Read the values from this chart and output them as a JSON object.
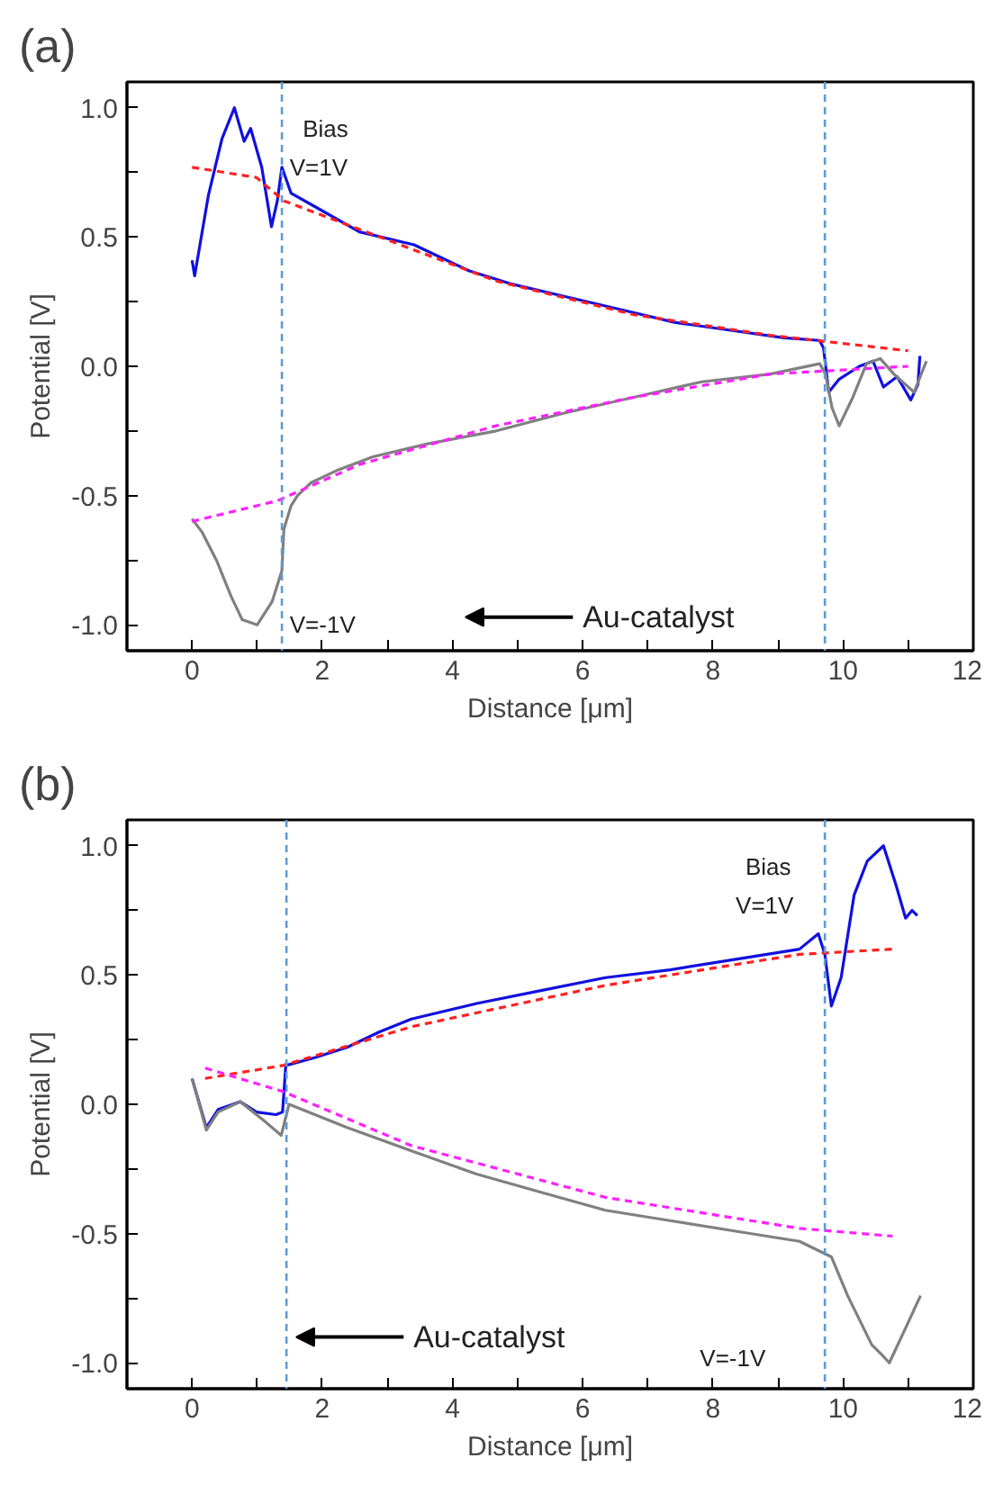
{
  "chart_data": [
    {
      "type": "line",
      "title": "(a)",
      "xlabel": "Distance [μm]",
      "ylabel": "Potential [V]",
      "xlim": [
        -1,
        12
      ],
      "ylim": [
        -1.1,
        1.1
      ],
      "xticks": [
        0,
        {
          "value": 1,
          "label": null
        },
        2,
        {
          "value": 3,
          "label": null
        },
        4,
        {
          "value": 5,
          "label": null
        },
        6,
        {
          "value": 7,
          "label": null
        },
        8,
        {
          "value": 9,
          "label": null
        },
        10,
        {
          "value": 11,
          "label": null
        },
        12
      ],
      "yticks": [
        {
          "value": -1.0,
          "label": "-1.0"
        },
        {
          "value": -0.75,
          "label": null
        },
        {
          "value": -0.5,
          "label": "-0.5"
        },
        {
          "value": -0.25,
          "label": null
        },
        {
          "value": 0.0,
          "label": "0.0"
        },
        {
          "value": 0.25,
          "label": null
        },
        {
          "value": 0.5,
          "label": "0.5"
        },
        {
          "value": 0.75,
          "label": null
        },
        {
          "value": 1.0,
          "label": "1.0"
        }
      ],
      "grid": false,
      "series": [
        {
          "color": "#1010e0",
          "line_style": "solid",
          "x": [
            0,
            0.04,
            0.25,
            0.46,
            0.65,
            0.8,
            0.9,
            1.07,
            1.22,
            1.31,
            1.38,
            1.52,
            1.94,
            2.57,
            3.41,
            4.25,
            4.88,
            5.73,
            6.57,
            7.41,
            8.25,
            9.09,
            9.64,
            9.7,
            9.78,
            9.94,
            10.25,
            10.46,
            10.62,
            10.83,
            11.04,
            11.15,
            11.18
          ],
          "values": [
            0.41,
            0.35,
            0.66,
            0.88,
            1.0,
            0.87,
            0.92,
            0.77,
            0.54,
            0.64,
            0.77,
            0.67,
            0.61,
            0.52,
            0.47,
            0.37,
            0.32,
            0.27,
            0.22,
            0.17,
            0.14,
            0.11,
            0.1,
            0.07,
            -0.1,
            -0.05,
            0.0,
            0.02,
            -0.08,
            -0.04,
            -0.13,
            -0.07,
            0.04
          ]
        },
        {
          "color": "#808080",
          "line_style": "solid",
          "x": [
            0,
            0.15,
            0.375,
            0.6,
            0.77,
            1.0,
            1.23,
            1.38,
            1.41,
            1.52,
            1.62,
            1.83,
            2.25,
            2.78,
            3.62,
            4.67,
            5.73,
            6.78,
            7.83,
            8.88,
            9.64,
            9.73,
            9.83,
            9.94,
            10.15,
            10.36,
            10.57,
            10.78,
            11.09,
            11.28
          ],
          "values": [
            -0.59,
            -0.64,
            -0.75,
            -0.89,
            -0.98,
            -1.0,
            -0.91,
            -0.79,
            -0.63,
            -0.54,
            -0.5,
            -0.45,
            -0.4,
            -0.35,
            -0.3,
            -0.25,
            -0.18,
            -0.12,
            -0.06,
            -0.03,
            0.01,
            -0.03,
            -0.16,
            -0.23,
            -0.12,
            0.01,
            0.03,
            -0.03,
            -0.1,
            0.02
          ]
        },
        {
          "color": "#ff2020",
          "line_style": "dashed",
          "x": [
            0,
            0.99,
            1.41,
            2.57,
            4.67,
            6.78,
            8.88,
            11.0
          ],
          "values": [
            0.77,
            0.73,
            0.64,
            0.53,
            0.33,
            0.2,
            0.12,
            0.06
          ]
        },
        {
          "color": "#ff20ff",
          "line_style": "dashed",
          "x": [
            0,
            1.31,
            2.57,
            4.67,
            6.78,
            8.88,
            11.0
          ],
          "values": [
            -0.6,
            -0.52,
            -0.38,
            -0.23,
            -0.12,
            -0.03,
            0.0
          ]
        }
      ],
      "ref_lines": [
        {
          "axis": "x",
          "value": 1.38,
          "color": "#5b9bd5",
          "line_style": "dashed"
        },
        {
          "axis": "x",
          "value": 9.72,
          "color": "#5b9bd5",
          "line_style": "dashed"
        }
      ],
      "annotations": [
        "Bias",
        "V=1V",
        "V=-1V",
        "Au-catalyst"
      ]
    },
    {
      "type": "line",
      "title": "(b)",
      "xlabel": "Distance [μm]",
      "ylabel": "Potential [V]",
      "xlim": [
        -1,
        12
      ],
      "ylim": [
        -1.1,
        1.1
      ],
      "xticks": [
        0,
        {
          "value": 1,
          "label": null
        },
        2,
        {
          "value": 3,
          "label": null
        },
        4,
        {
          "value": 5,
          "label": null
        },
        6,
        {
          "value": 7,
          "label": null
        },
        8,
        {
          "value": 9,
          "label": null
        },
        10,
        {
          "value": 11,
          "label": null
        },
        12
      ],
      "yticks": [
        {
          "value": -1.0,
          "label": "-1.0"
        },
        {
          "value": -0.75,
          "label": null
        },
        {
          "value": -0.5,
          "label": "-0.5"
        },
        {
          "value": -0.25,
          "label": null
        },
        {
          "value": 0.0,
          "label": "0.0"
        },
        {
          "value": 0.25,
          "label": null
        },
        {
          "value": 0.5,
          "label": "0.5"
        },
        {
          "value": 0.75,
          "label": null
        },
        {
          "value": 1.0,
          "label": "1.0"
        }
      ],
      "grid": false,
      "series": [
        {
          "color": "#1010e0",
          "line_style": "solid",
          "x": [
            0,
            0.22,
            0.4,
            0.74,
            0.99,
            1.29,
            1.39,
            1.44,
            1.88,
            2.38,
            2.88,
            3.37,
            4.37,
            5.36,
            6.35,
            7.34,
            8.33,
            9.33,
            9.62,
            9.72,
            9.82,
            9.97,
            10.17,
            10.37,
            10.62,
            10.81,
            10.96,
            11.06,
            11.14
          ],
          "values": [
            0.1,
            -0.09,
            -0.02,
            0.01,
            -0.03,
            -0.04,
            -0.03,
            0.15,
            0.18,
            0.22,
            0.28,
            0.33,
            0.39,
            0.44,
            0.49,
            0.52,
            0.56,
            0.6,
            0.66,
            0.58,
            0.38,
            0.49,
            0.81,
            0.94,
            1.0,
            0.85,
            0.72,
            0.75,
            0.73
          ]
        },
        {
          "color": "#808080",
          "line_style": "solid",
          "x": [
            0,
            0.22,
            0.4,
            0.74,
            1.09,
            1.37,
            1.49,
            2.38,
            3.37,
            4.37,
            5.36,
            6.35,
            7.34,
            8.33,
            9.33,
            9.82,
            10.07,
            10.44,
            10.6,
            10.71,
            10.97,
            11.19
          ],
          "values": [
            0.1,
            -0.1,
            -0.03,
            0.01,
            -0.06,
            -0.12,
            0.0,
            -0.09,
            -0.18,
            -0.27,
            -0.34,
            -0.41,
            -0.45,
            -0.49,
            -0.53,
            -0.59,
            -0.74,
            -0.93,
            -0.97,
            -1.0,
            -0.86,
            -0.74
          ]
        },
        {
          "color": "#ff2020",
          "line_style": "dashed",
          "x": [
            0.2,
            1.39,
            3.37,
            6.35,
            9.33,
            10.76
          ],
          "values": [
            0.1,
            0.15,
            0.3,
            0.46,
            0.58,
            0.6
          ]
        },
        {
          "color": "#ff20ff",
          "line_style": "dashed",
          "x": [
            0.2,
            1.39,
            3.37,
            6.35,
            9.33,
            10.76
          ],
          "values": [
            0.14,
            0.05,
            -0.16,
            -0.36,
            -0.48,
            -0.51
          ]
        }
      ],
      "ref_lines": [
        {
          "axis": "x",
          "value": 1.45,
          "color": "#5b9bd5",
          "line_style": "dashed"
        },
        {
          "axis": "x",
          "value": 9.72,
          "color": "#5b9bd5",
          "line_style": "dashed"
        }
      ],
      "annotations": [
        "Bias",
        "V=1V",
        "V=-1V",
        "Au-catalyst"
      ]
    }
  ]
}
